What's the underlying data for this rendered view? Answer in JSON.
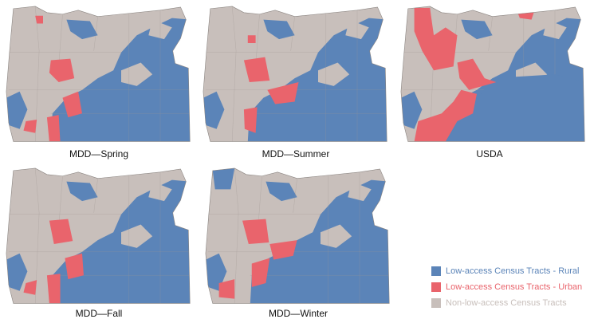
{
  "maps": [
    {
      "title": "MDD—Spring"
    },
    {
      "title": "MDD—Summer"
    },
    {
      "title": "USDA"
    },
    {
      "title": "MDD—Fall"
    },
    {
      "title": "MDD—Winter"
    }
  ],
  "legend": [
    {
      "label": "Low-access Census Tracts - Rural",
      "color": "#5b84b8"
    },
    {
      "label": "Low-access Census Tracts - Urban",
      "color": "#e9646c"
    },
    {
      "label": "Non-low-access Census Tracts",
      "color": "#c8bfbb"
    }
  ]
}
